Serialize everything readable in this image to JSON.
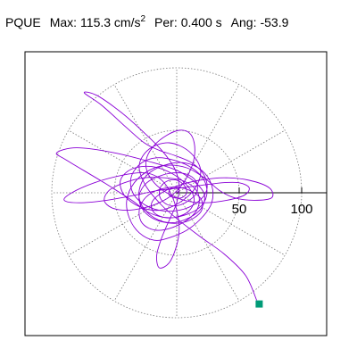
{
  "header": {
    "station": "PQUE",
    "max_label": "Max:",
    "max_value": "115.3 cm/s",
    "max_exp": "2",
    "per_label": "Per:",
    "per_value": "0.400 s",
    "ang_label": "Ang:",
    "ang_value": "-53.9"
  },
  "colors": {
    "trace": "#8a00d6",
    "marker": "#009b77",
    "frame": "#000000",
    "grid": "#777777"
  },
  "chart_data": {
    "type": "polar-orbit",
    "r_ticks": [
      50,
      100
    ],
    "r_tick_labels": [
      "50",
      "100"
    ],
    "r_max": 115.3,
    "angular_gridlines_deg": [
      0,
      30,
      60,
      90,
      120,
      150,
      180,
      210,
      240,
      270,
      300,
      330
    ],
    "grid": true,
    "end_marker": {
      "x": 66,
      "y": -89
    },
    "orbit_points": [
      [
        64,
        -86
      ],
      [
        55,
        -66
      ],
      [
        38,
        -49
      ],
      [
        20,
        -36
      ],
      [
        3,
        -23
      ],
      [
        -12,
        -10
      ],
      [
        -25,
        6
      ],
      [
        -30,
        22
      ],
      [
        -22,
        35
      ],
      [
        -6,
        40
      ],
      [
        10,
        33
      ],
      [
        19,
        19
      ],
      [
        15,
        4
      ],
      [
        2,
        -8
      ],
      [
        -14,
        -14
      ],
      [
        -30,
        -11
      ],
      [
        -42,
        -2
      ],
      [
        -45,
        10
      ],
      [
        -36,
        19
      ],
      [
        -20,
        21
      ],
      [
        -3,
        15
      ],
      [
        9,
        5
      ],
      [
        14,
        -6
      ],
      [
        8,
        -16
      ],
      [
        -6,
        -20
      ],
      [
        -22,
        -16
      ],
      [
        -36,
        -6
      ],
      [
        -58,
        8
      ],
      [
        -88,
        26
      ],
      [
        -96,
        32
      ],
      [
        -80,
        36
      ],
      [
        -50,
        32
      ],
      [
        -22,
        25
      ],
      [
        0,
        18
      ],
      [
        14,
        9
      ],
      [
        22,
        -1
      ],
      [
        20,
        -12
      ],
      [
        10,
        -20
      ],
      [
        -4,
        -24
      ],
      [
        -18,
        -20
      ],
      [
        -28,
        -10
      ],
      [
        -30,
        2
      ],
      [
        -24,
        14
      ],
      [
        -10,
        22
      ],
      [
        6,
        24
      ],
      [
        20,
        18
      ],
      [
        28,
        6
      ],
      [
        28,
        -8
      ],
      [
        20,
        -20
      ],
      [
        8,
        -30
      ],
      [
        -6,
        -36
      ],
      [
        -18,
        -38
      ],
      [
        -30,
        -32
      ],
      [
        -38,
        -20
      ],
      [
        -40,
        -6
      ],
      [
        -34,
        8
      ],
      [
        -22,
        18
      ],
      [
        -8,
        22
      ],
      [
        8,
        20
      ],
      [
        22,
        12
      ],
      [
        34,
        2
      ],
      [
        46,
        -4
      ],
      [
        62,
        -6
      ],
      [
        76,
        -4
      ],
      [
        74,
        4
      ],
      [
        58,
        10
      ],
      [
        38,
        12
      ],
      [
        18,
        10
      ],
      [
        2,
        6
      ],
      [
        -12,
        0
      ],
      [
        -20,
        -8
      ],
      [
        -18,
        -16
      ],
      [
        -8,
        -20
      ],
      [
        6,
        -18
      ],
      [
        18,
        -12
      ],
      [
        24,
        -2
      ],
      [
        22,
        10
      ],
      [
        12,
        20
      ],
      [
        -2,
        26
      ],
      [
        -16,
        28
      ],
      [
        -28,
        24
      ],
      [
        -36,
        14
      ],
      [
        -36,
        2
      ],
      [
        -28,
        -8
      ],
      [
        -14,
        -14
      ],
      [
        2,
        -14
      ],
      [
        16,
        -8
      ],
      [
        24,
        2
      ],
      [
        22,
        14
      ],
      [
        12,
        24
      ],
      [
        -2,
        30
      ],
      [
        -14,
        34
      ],
      [
        -26,
        40
      ],
      [
        -40,
        52
      ],
      [
        -60,
        70
      ],
      [
        -74,
        80
      ],
      [
        -64,
        78
      ],
      [
        -44,
        64
      ],
      [
        -26,
        48
      ],
      [
        -12,
        34
      ],
      [
        -2,
        20
      ],
      [
        2,
        6
      ],
      [
        0,
        -8
      ],
      [
        -6,
        -22
      ],
      [
        -12,
        -36
      ],
      [
        -16,
        -50
      ],
      [
        -14,
        -60
      ],
      [
        -6,
        -56
      ],
      [
        0,
        -42
      ],
      [
        2,
        -28
      ],
      [
        0,
        -14
      ],
      [
        -4,
        -2
      ],
      [
        -10,
        8
      ],
      [
        -18,
        14
      ],
      [
        -28,
        16
      ],
      [
        -44,
        14
      ],
      [
        -66,
        8
      ],
      [
        -84,
        0
      ],
      [
        -90,
        -6
      ],
      [
        -78,
        -8
      ],
      [
        -56,
        -6
      ],
      [
        -34,
        -2
      ],
      [
        -14,
        2
      ],
      [
        4,
        4
      ],
      [
        20,
        6
      ],
      [
        36,
        8
      ],
      [
        50,
        8
      ],
      [
        58,
        4
      ],
      [
        54,
        -2
      ],
      [
        40,
        -6
      ],
      [
        22,
        -8
      ],
      [
        6,
        -6
      ],
      [
        -8,
        0
      ],
      [
        -18,
        8
      ],
      [
        -24,
        18
      ],
      [
        -24,
        28
      ],
      [
        -18,
        38
      ],
      [
        -8,
        46
      ],
      [
        2,
        50
      ],
      [
        10,
        48
      ],
      [
        14,
        40
      ],
      [
        14,
        28
      ],
      [
        10,
        16
      ],
      [
        4,
        6
      ],
      [
        -4,
        -2
      ],
      [
        -14,
        -8
      ],
      [
        -26,
        -12
      ],
      [
        -40,
        -14
      ],
      [
        -52,
        -12
      ],
      [
        -58,
        -6
      ],
      [
        -54,
        2
      ],
      [
        -42,
        8
      ],
      [
        -26,
        12
      ],
      [
        -10,
        12
      ],
      [
        4,
        10
      ],
      [
        14,
        4
      ],
      [
        18,
        -4
      ],
      [
        16,
        -14
      ],
      [
        8,
        -22
      ],
      [
        -4,
        -28
      ],
      [
        -16,
        -30
      ],
      [
        -26,
        -26
      ],
      [
        -30,
        -18
      ],
      [
        -28,
        -8
      ],
      [
        -20,
        0
      ],
      [
        -8,
        4
      ],
      [
        4,
        4
      ],
      [
        14,
        0
      ],
      [
        20,
        -6
      ],
      [
        20,
        -14
      ],
      [
        14,
        -20
      ],
      [
        4,
        -24
      ],
      [
        -8,
        -24
      ],
      [
        -20,
        -20
      ],
      [
        -28,
        -12
      ],
      [
        -30,
        -2
      ],
      [
        -24,
        8
      ],
      [
        -12,
        14
      ],
      [
        0,
        16
      ],
      [
        10,
        14
      ],
      [
        16,
        8
      ],
      [
        16,
        0
      ],
      [
        10,
        -6
      ],
      [
        2,
        -10
      ],
      [
        -6,
        -10
      ],
      [
        -12,
        -6
      ],
      [
        -14,
        0
      ],
      [
        -12,
        6
      ],
      [
        -6,
        10
      ],
      [
        0,
        10
      ],
      [
        6,
        6
      ],
      [
        8,
        0
      ],
      [
        4,
        -4
      ],
      [
        -2,
        -4
      ],
      [
        -6,
        -2
      ],
      [
        -6,
        2
      ],
      [
        -4,
        4
      ],
      [
        0,
        4
      ],
      [
        2,
        2
      ],
      [
        0,
        0
      ]
    ]
  }
}
